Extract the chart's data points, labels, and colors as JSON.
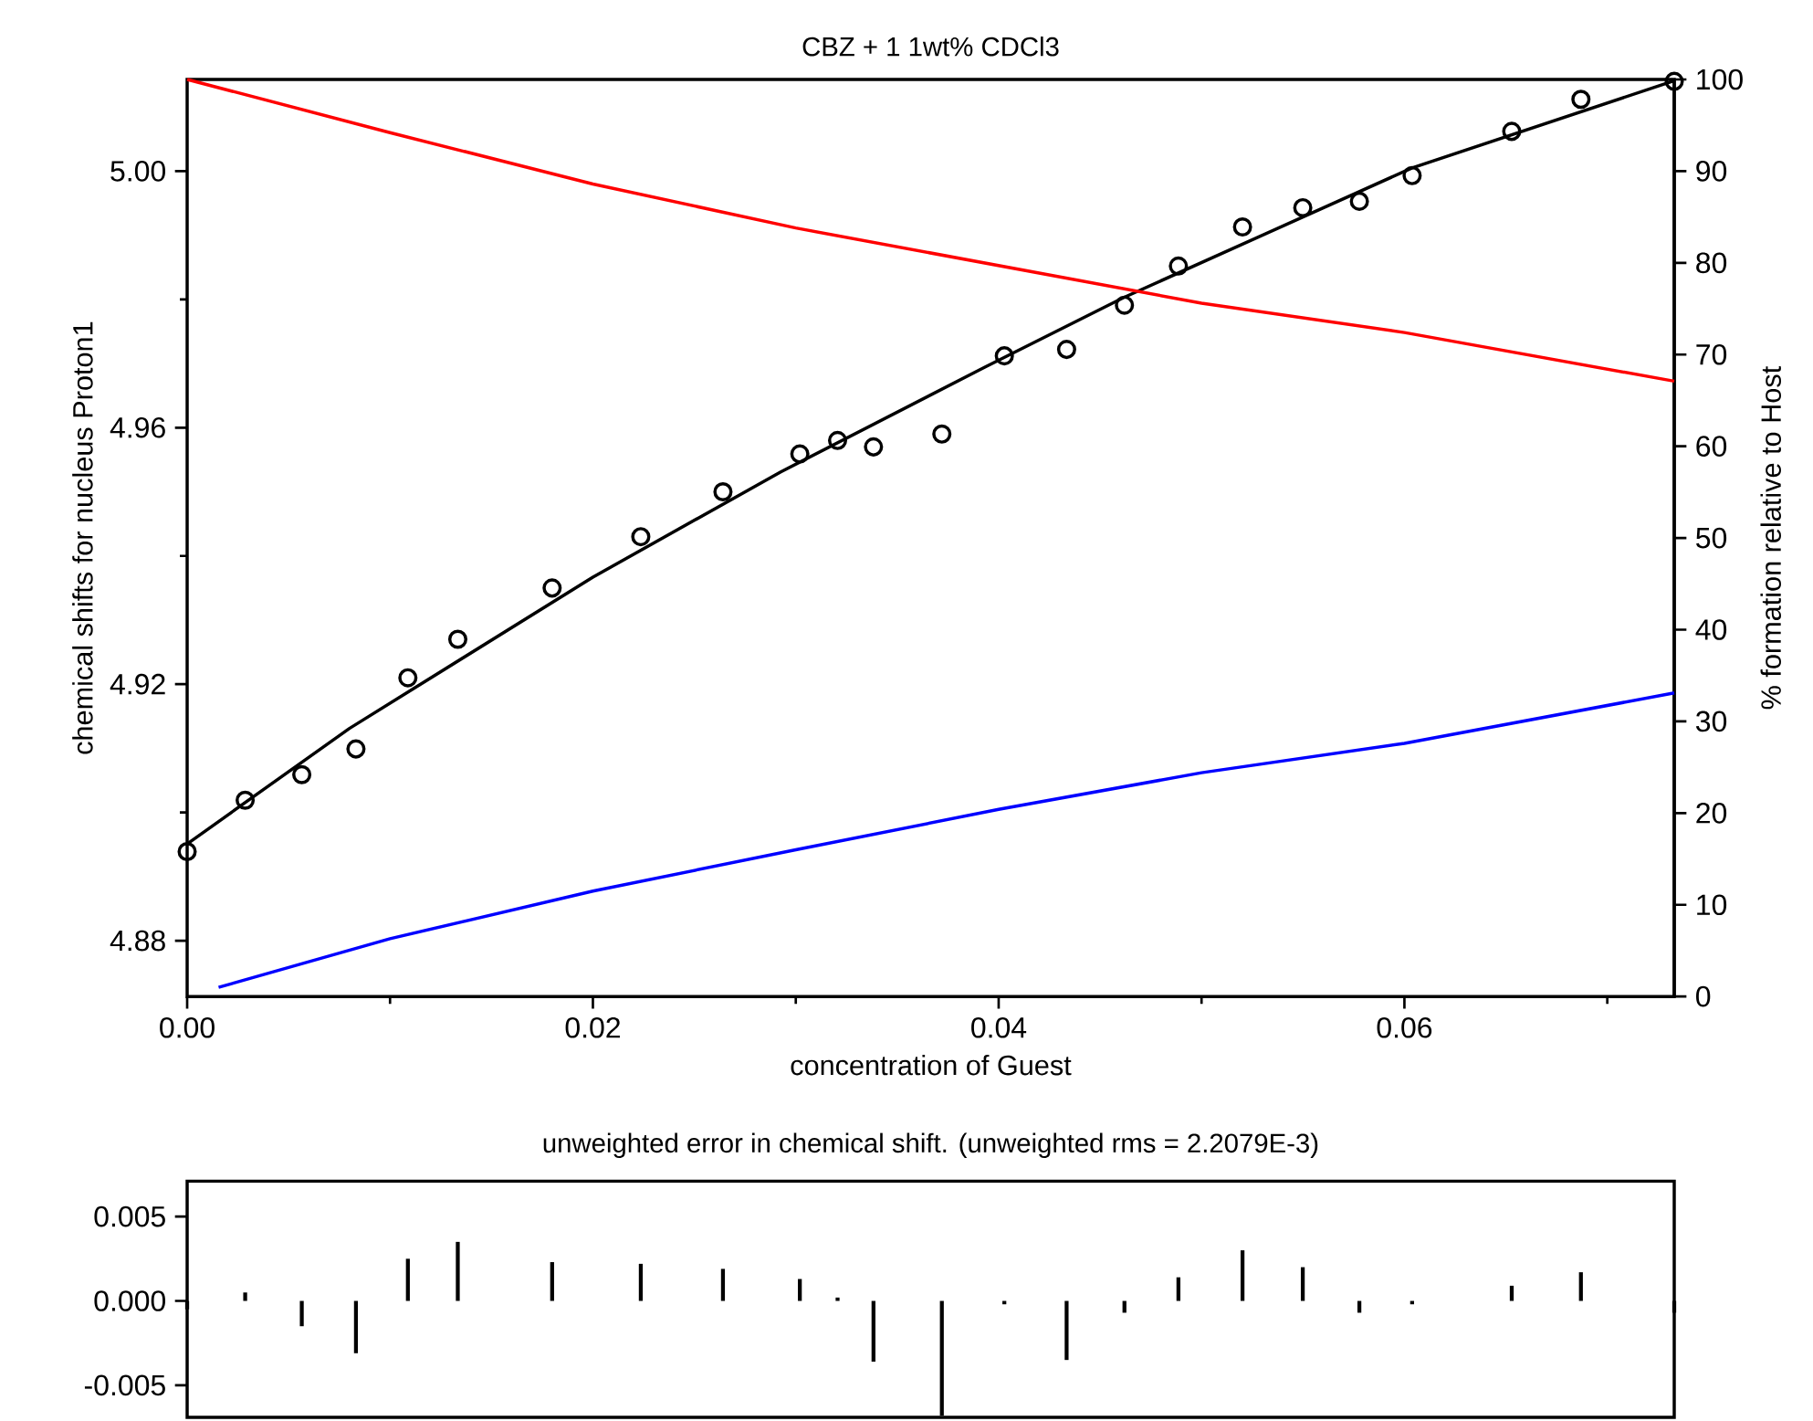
{
  "chart_data": [
    {
      "type": "scatter",
      "title": "CBZ + 1 1wt% CDCl3",
      "xlabel": "concentration of Guest",
      "ylabel": "chemical shifts for nucleus Proton1",
      "y2label": "% formation relative to Host",
      "xlim": [
        0,
        0.0733
      ],
      "ylim": [
        4.8713,
        5.0143
      ],
      "y2lim": [
        0,
        100
      ],
      "xticks": [
        {
          "value": 0,
          "label": "0.00"
        },
        {
          "value": 0.01,
          "label": null
        },
        {
          "value": 0.02,
          "label": "0.02"
        },
        {
          "value": 0.03,
          "label": null
        },
        {
          "value": 0.04,
          "label": "0.04"
        },
        {
          "value": 0.05,
          "label": null
        },
        {
          "value": 0.06,
          "label": "0.06"
        },
        {
          "value": 0.07,
          "label": null
        }
      ],
      "yticks": [
        4.88,
        {
          "value": 4.9,
          "label": null
        },
        4.92,
        {
          "value": 4.94,
          "label": null
        },
        4.96,
        {
          "value": 4.98,
          "label": null
        },
        {
          "value": 5.0,
          "label": "5.00"
        }
      ],
      "y2ticks": [
        0,
        10,
        20,
        30,
        40,
        50,
        60,
        70,
        80,
        90,
        100
      ],
      "series": [
        {
          "type": "scatter",
          "marker": "circle",
          "color": "#000000",
          "x": [
            0,
            0.00286,
            0.00565,
            0.00832,
            0.01088,
            0.01334,
            0.01799,
            0.02236,
            0.02641,
            0.0302,
            0.03206,
            0.03383,
            0.0372,
            0.04028,
            0.04335,
            0.0462,
            0.04886,
            0.05202,
            0.05499,
            0.05778,
            0.06038,
            0.06529,
            0.0687,
            0.0733
          ],
          "values": [
            4.8939,
            4.9019,
            4.9059,
            4.9099,
            4.921,
            4.927,
            4.935,
            4.943,
            4.95,
            4.9559,
            4.958,
            4.957,
            4.959,
            4.9712,
            4.9722,
            4.9791,
            4.9852,
            4.9913,
            4.9943,
            4.9953,
            4.9993,
            5.0062,
            5.0112,
            5.014
          ]
        },
        {
          "type": "line",
          "color": "#000000",
          "x": [
            0,
            0.008,
            0.02,
            0.02926,
            0.0393,
            0.04617,
            0.06038,
            0.0733
          ],
          "values": [
            4.8951,
            4.9131,
            4.9367,
            4.9531,
            4.9694,
            4.9803,
            5.0005,
            5.0141
          ]
        },
        {
          "type": "line",
          "axis": "y2",
          "color": "#ff0000",
          "x": [
            0,
            0.01,
            0.02,
            0.03,
            0.04,
            0.05,
            0.06,
            0.0733
          ],
          "values": [
            100,
            94.2,
            88.6,
            83.8,
            79.7,
            75.6,
            72.4,
            67.1
          ]
        },
        {
          "type": "line",
          "axis": "y2",
          "color": "#0000ff",
          "x": [
            0.00155,
            0.01,
            0.02,
            0.03,
            0.04,
            0.05,
            0.06,
            0.0733
          ],
          "values": [
            1.0,
            6.3,
            11.5,
            16.0,
            20.4,
            24.4,
            27.6,
            33.1
          ]
        }
      ]
    },
    {
      "type": "bar",
      "title": "unweighted error in chemical shift. (unweighted rms = 2.2079E-3)",
      "color": "#000000",
      "tick_labels": "y",
      "xlim": [
        0,
        0.0733
      ],
      "ylim": [
        -0.0069,
        0.0071
      ],
      "yticks": [
        0.005,
        {
          "value": 0,
          "label": "0.000"
        },
        -0.005
      ],
      "x": [
        0,
        0.00286,
        0.00565,
        0.00832,
        0.01088,
        0.01334,
        0.01799,
        0.02236,
        0.02641,
        0.0302,
        0.03206,
        0.03383,
        0.0372,
        0.04028,
        0.04335,
        0.0462,
        0.04886,
        0.05202,
        0.05499,
        0.05778,
        0.06038,
        0.06529,
        0.0687,
        0.0733
      ],
      "values": [
        -0.0005,
        0.0005,
        -0.0015,
        -0.0031,
        0.0025,
        0.0035,
        0.0023,
        0.0022,
        0.0019,
        0.0013,
        0.0002,
        -0.0036,
        -0.0068,
        -0.0002,
        -0.0035,
        -0.0007,
        0.0014,
        0.003,
        0.002,
        -0.0007,
        -0.0002,
        0.0009,
        0.0017,
        -0.0007
      ]
    }
  ]
}
